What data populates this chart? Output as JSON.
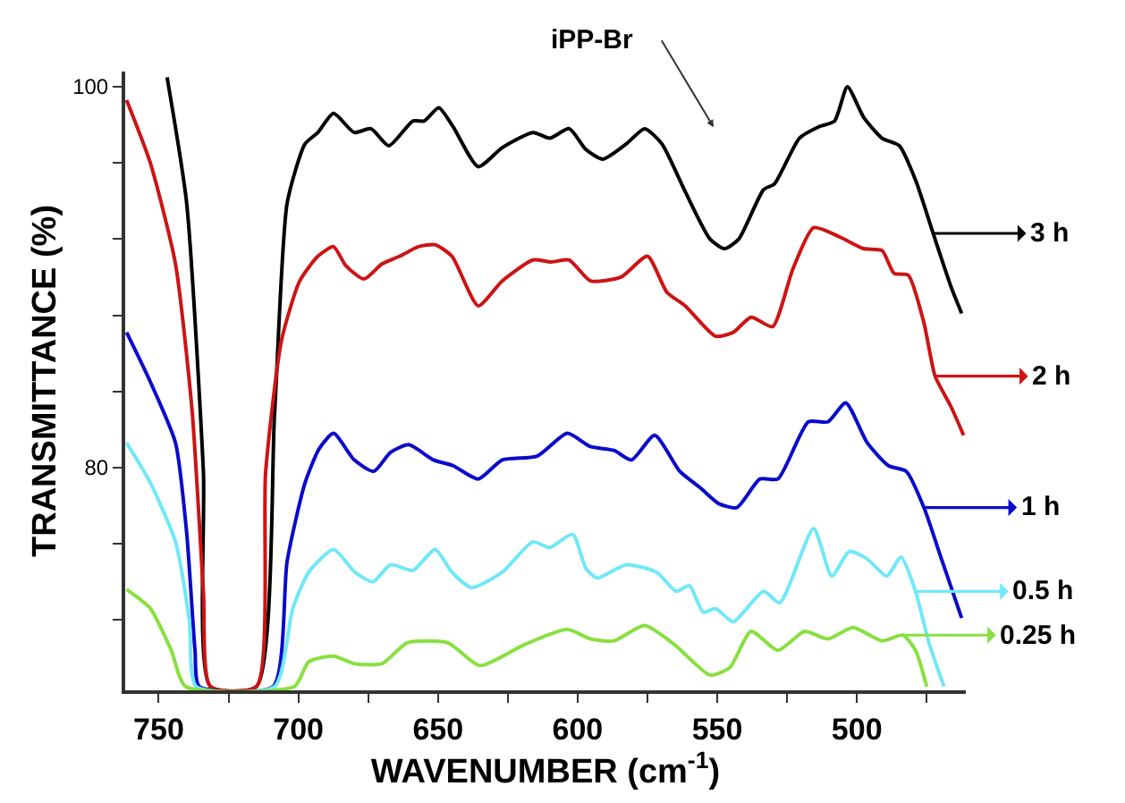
{
  "chart_data": {
    "type": "line",
    "xlabel": "WAVENUMBER (cm$^{-1}$)",
    "ylabel": "TRANSMITTANCE (%)",
    "xlim": [
      762,
      461
    ],
    "ylim": [
      68.3,
      100.8
    ],
    "xticks": [
      750,
      {
        "value": 725,
        "label": null
      },
      700,
      {
        "value": 675,
        "label": null
      },
      650,
      {
        "value": 625,
        "label": null
      },
      600,
      {
        "value": 575,
        "label": null
      },
      550,
      {
        "value": 525,
        "label": null
      },
      500,
      {
        "value": 475,
        "label": null
      }
    ],
    "yticks": [
      {
        "value": 72,
        "label": null
      },
      {
        "value": 76,
        "label": null
      },
      80,
      {
        "value": 84,
        "label": null
      },
      {
        "value": 88,
        "label": null
      },
      {
        "value": 92,
        "label": null
      },
      {
        "value": 96,
        "label": null
      },
      100
    ],
    "grid": false,
    "legend": "right",
    "marker": "none",
    "line_style": "solid",
    "annotations": [
      "iPP-Br"
    ],
    "series": [
      {
        "name": "3 h",
        "color": "#000000",
        "x": [
          747,
          740,
          734,
          731.5,
          715,
          708.5,
          704,
          697.6,
          693,
          687.4,
          680,
          674,
          667.6,
          659,
          655,
          649.7,
          644.6,
          635.6,
          627,
          616,
          610,
          603,
          597,
          591,
          582.6,
          576,
          569.8,
          561.5,
          552.6,
          547.4,
          542.3,
          533.4,
          529.5,
          520.6,
          513.6,
          508,
          503.4,
          497.6,
          491,
          484.8,
          479,
          472.7,
          466.3,
          462.5
        ],
        "values": [
          100.5,
          93.9,
          79.8,
          68.5,
          68.5,
          82.9,
          93.9,
          97,
          97.6,
          98.6,
          97.6,
          97.8,
          96.9,
          98.2,
          98.2,
          98.9,
          97.9,
          95.8,
          96.8,
          97.6,
          97.3,
          97.8,
          96.7,
          96.2,
          97,
          97.8,
          97,
          94.5,
          92,
          91.5,
          92,
          94.6,
          94.9,
          97.3,
          97.9,
          98.2,
          100,
          98.4,
          97.3,
          96.9,
          95.1,
          92.3,
          89.5,
          88.1
        ]
      },
      {
        "name": "2 h",
        "color": "#cc1414",
        "x": [
          761.5,
          753,
          744,
          738,
          734,
          731.5,
          715,
          711.7,
          706,
          699.5,
          693,
          687.4,
          683,
          676.5,
          670,
          663.7,
          657,
          651,
          645,
          635.6,
          627,
          616,
          609.4,
          603,
          595.4,
          584.5,
          575,
          568,
          561.5,
          550.6,
          544.3,
          537.9,
          530.2,
          523,
          515.5,
          506,
          497.6,
          491,
          486.7,
          481.6,
          476,
          472,
          466.3,
          461.8
        ],
        "values": [
          99.3,
          96,
          90.7,
          82.9,
          73.5,
          68.5,
          68.5,
          79.8,
          86.7,
          89.8,
          91.1,
          91.6,
          90.6,
          89.9,
          90.7,
          91.1,
          91.6,
          91.7,
          91.1,
          88.5,
          89.8,
          90.9,
          90.8,
          90.9,
          89.8,
          90,
          91.1,
          89.2,
          88.5,
          86.9,
          87.1,
          87.9,
          87.4,
          90.4,
          92.6,
          92.1,
          91.5,
          91.4,
          90.2,
          90.1,
          87.6,
          84.8,
          83.2,
          81.7
        ]
      },
      {
        "name": "1 h",
        "color": "#0a0acc",
        "x": [
          761.5,
          753,
          744,
          740,
          737,
          735.5,
          709,
          704,
          697.6,
          692.5,
          687.4,
          680,
          673,
          667,
          660.5,
          651.6,
          644.6,
          635.6,
          627,
          614.5,
          603.7,
          595.4,
          587,
          580.7,
          572.4,
          563.4,
          555.8,
          549.4,
          543,
          534.7,
          528.3,
          517.4,
          510.4,
          504,
          496.3,
          488.7,
          482.3,
          476,
          469.5,
          462.5
        ],
        "values": [
          87.1,
          84.5,
          81.3,
          76.6,
          70.4,
          68.5,
          68.5,
          75.1,
          79.2,
          81,
          81.8,
          80.4,
          79.8,
          80.8,
          81.2,
          80.4,
          80.1,
          79.4,
          80.4,
          80.6,
          81.8,
          81.1,
          80.9,
          80.4,
          81.7,
          79.8,
          78.9,
          78.1,
          77.9,
          79.4,
          79.4,
          82.4,
          82.4,
          83.4,
          81.3,
          80.1,
          79.8,
          77.9,
          75.1,
          72.1
        ]
      },
      {
        "name": "0.5 h",
        "color": "#70e8f8",
        "x": [
          761.5,
          753,
          744,
          739,
          736.6,
          708.5,
          702,
          696.3,
          687.4,
          679.7,
          673.3,
          667,
          659,
          651,
          645,
          638,
          627,
          616,
          610,
          601.8,
          597,
          593,
          582.6,
          571.7,
          564.7,
          560,
          555,
          550.6,
          544.3,
          533.4,
          527.6,
          515.5,
          509,
          502.7,
          496.3,
          489.3,
          484.2,
          479,
          474,
          468.8
        ],
        "values": [
          81.3,
          79.2,
          76.1,
          71.9,
          68.5,
          68.5,
          72.6,
          74.5,
          75.7,
          74.5,
          74,
          74.9,
          74.6,
          75.7,
          74.5,
          73.7,
          74.5,
          76.1,
          75.8,
          76.5,
          74.7,
          74.2,
          74.9,
          74.5,
          73.5,
          73.8,
          72.4,
          72.6,
          71.9,
          73.5,
          72.9,
          76.8,
          74.3,
          75.6,
          75.2,
          74.3,
          75.3,
          73.5,
          70.7,
          68.5
        ]
      },
      {
        "name": "0.25 h",
        "color": "#88e040",
        "x": [
          761.5,
          753,
          745.5,
          740.4,
          701.4,
          696.3,
          687.4,
          680,
          670,
          661,
          646.5,
          635,
          619,
          603.7,
          595.4,
          587,
          576,
          565.3,
          552.6,
          545.5,
          537.9,
          528.3,
          518.7,
          510.4,
          501.4,
          491,
          483.5,
          479,
          475
        ],
        "values": [
          73.6,
          72.6,
          70.4,
          68.5,
          68.5,
          69.8,
          70.1,
          69.7,
          69.7,
          70.8,
          70.8,
          69.6,
          70.7,
          71.5,
          71,
          70.9,
          71.7,
          70.7,
          69.1,
          69.5,
          71.4,
          70.4,
          71.4,
          71,
          71.6,
          70.9,
          71.2,
          70.4,
          68.5
        ]
      }
    ]
  }
}
